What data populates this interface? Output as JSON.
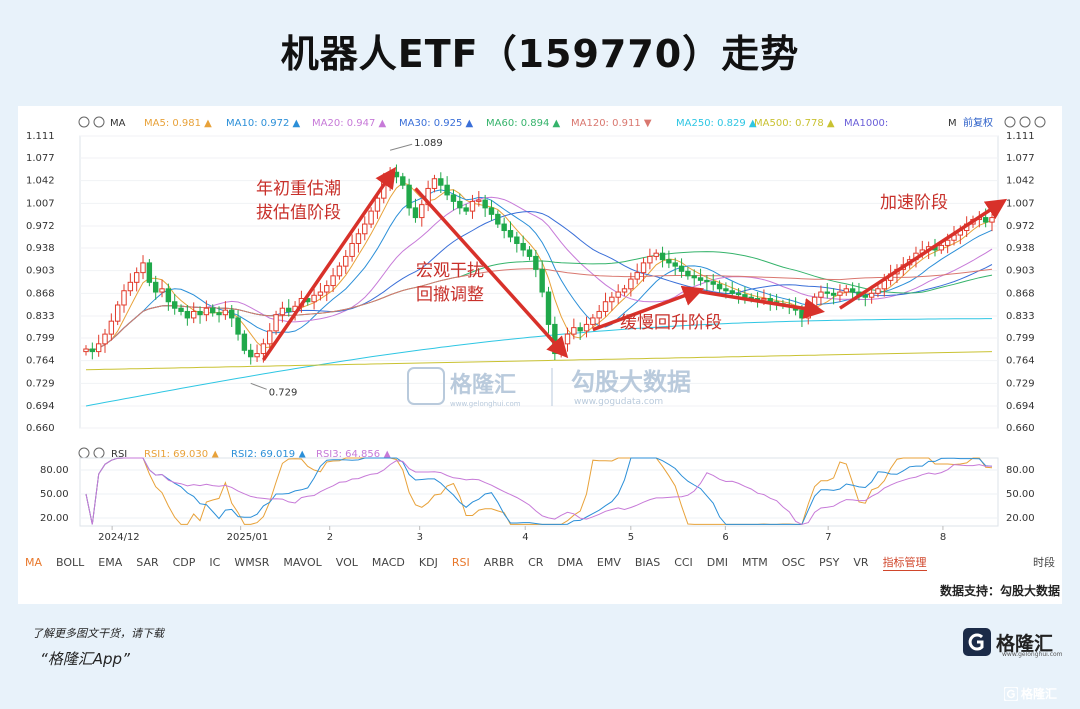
{
  "title": "机器人ETF（159770）走势",
  "colors": {
    "up": "#e23c2c",
    "down": "#20a84a",
    "ma5": "#e8a23a",
    "ma10": "#2b8fd8",
    "ma20": "#c77ad8",
    "ma30": "#3a6fd8",
    "ma60": "#35b36b",
    "ma120": "#d9776f",
    "ma250": "#2ec6e3",
    "ma500": "#c9c232",
    "arrow": "#d8312a",
    "rsi1": "#e8a23a",
    "rsi2": "#2b8fd8",
    "rsi3": "#c77ad8"
  },
  "toolbar": {
    "ma_label": "MA",
    "legend": [
      {
        "name": "MA5:",
        "value": "0.981",
        "dir": "▲",
        "color": "#e8a23a"
      },
      {
        "name": "MA10:",
        "value": "0.972",
        "dir": "▲",
        "color": "#2b8fd8"
      },
      {
        "name": "MA20:",
        "value": "0.947",
        "dir": "▲",
        "color": "#c77ad8"
      },
      {
        "name": "MA30:",
        "value": "0.925",
        "dir": "▲",
        "color": "#3a6fd8"
      },
      {
        "name": "MA60:",
        "value": "0.894",
        "dir": "▲",
        "color": "#35b36b"
      },
      {
        "name": "MA120:",
        "value": "0.911",
        "dir": "▼",
        "color": "#d9776f"
      },
      {
        "name": "MA250:",
        "value": "0.829",
        "dir": "▲",
        "color": "#2ec6e3"
      },
      {
        "name": "MA500:",
        "value": "0.778",
        "dir": "▲",
        "color": "#c9c232"
      },
      {
        "name": "MA1000:",
        "value": "",
        "dir": "",
        "color": "#6a5fd8"
      }
    ],
    "m_label": "M",
    "adjust_label": "前复权"
  },
  "rsi_toolbar": {
    "label": "RSI",
    "legend": [
      {
        "name": "RSI1:",
        "value": "69.030",
        "dir": "▲",
        "color": "#e8a23a"
      },
      {
        "name": "RSI2:",
        "value": "69.019",
        "dir": "▲",
        "color": "#2b8fd8"
      },
      {
        "name": "RSI3:",
        "value": "64.856",
        "dir": "▲",
        "color": "#c77ad8"
      }
    ]
  },
  "indicators": [
    "MA",
    "BOLL",
    "EMA",
    "SAR",
    "CDP",
    "IC",
    "WMSR",
    "MAVOL",
    "VOL",
    "MACD",
    "KDJ",
    "RSI",
    "ARBR",
    "CR",
    "DMA",
    "EMV",
    "BIAS",
    "CCI",
    "DMI",
    "MTM",
    "OSC",
    "PSY",
    "VR",
    "指标管理"
  ],
  "indicator_period": "时段",
  "source": "数据支持：勾股大数据",
  "footer": {
    "line1": "了解更多图文干货，请下载",
    "line2": "“格隆汇App”",
    "logo_text": "格隆汇",
    "logo_sub": "www.gelonghui.com",
    "corner": "格隆汇"
  },
  "watermark": {
    "left_text": "格隆汇",
    "left_sub": "www.gelonghui.com",
    "right_text": "勾股大数据",
    "right_sub": "www.gogudata.com"
  },
  "chart_data": {
    "type": "candlestick",
    "title": "机器人ETF（159770）走势",
    "price_ticks": [
      "1.111",
      "1.077",
      "1.042",
      "1.007",
      "0.972",
      "0.938",
      "0.903",
      "0.868",
      "0.833",
      "0.799",
      "0.764",
      "0.729",
      "0.694",
      "0.660"
    ],
    "ylim": [
      0.66,
      1.111
    ],
    "x_labels": [
      "2024/12",
      "2025/01",
      "2",
      "3",
      "4",
      "5",
      "6",
      "7",
      "8"
    ],
    "max_label": "1.089",
    "min_label": "0.729",
    "closes": [
      0.782,
      0.778,
      0.79,
      0.805,
      0.825,
      0.85,
      0.872,
      0.885,
      0.9,
      0.915,
      0.885,
      0.87,
      0.875,
      0.855,
      0.845,
      0.84,
      0.83,
      0.84,
      0.835,
      0.845,
      0.838,
      0.835,
      0.842,
      0.83,
      0.805,
      0.78,
      0.77,
      0.775,
      0.79,
      0.81,
      0.835,
      0.845,
      0.84,
      0.848,
      0.86,
      0.855,
      0.865,
      0.87,
      0.88,
      0.895,
      0.91,
      0.925,
      0.945,
      0.96,
      0.975,
      0.995,
      1.015,
      1.04,
      1.055,
      1.048,
      1.035,
      1.0,
      0.985,
      1.005,
      1.03,
      1.045,
      1.035,
      1.02,
      1.01,
      1.0,
      0.995,
      1.01,
      1.012,
      1.0,
      0.99,
      0.975,
      0.965,
      0.955,
      0.945,
      0.935,
      0.925,
      0.905,
      0.87,
      0.82,
      0.775,
      0.79,
      0.805,
      0.815,
      0.81,
      0.82,
      0.83,
      0.84,
      0.855,
      0.862,
      0.87,
      0.875,
      0.89,
      0.9,
      0.915,
      0.925,
      0.93,
      0.92,
      0.915,
      0.91,
      0.902,
      0.895,
      0.892,
      0.888,
      0.886,
      0.882,
      0.875,
      0.872,
      0.868,
      0.866,
      0.862,
      0.86,
      0.858,
      0.86,
      0.855,
      0.852,
      0.85,
      0.848,
      0.842,
      0.83,
      0.845,
      0.862,
      0.87,
      0.868,
      0.865,
      0.87,
      0.875,
      0.87,
      0.865,
      0.862,
      0.868,
      0.875,
      0.888,
      0.898,
      0.905,
      0.912,
      0.92,
      0.93,
      0.935,
      0.94,
      0.935,
      0.942,
      0.95,
      0.958,
      0.965,
      0.975,
      0.982,
      0.985,
      0.978,
      0.985
    ],
    "ma_series": [
      {
        "name": "MA250",
        "start": 0.694,
        "end": 0.829
      },
      {
        "name": "MA500",
        "start": 0.75,
        "end": 0.778
      }
    ],
    "rsi": {
      "ticks": [
        "80.00",
        "50.00",
        "20.00"
      ],
      "ylim": [
        10,
        95
      ]
    },
    "annotations": [
      "年初重估潮",
      "拔估值阶段",
      "宏观干扰",
      "回撤调整",
      "缓慢回升阶段",
      "加速阶段"
    ]
  }
}
